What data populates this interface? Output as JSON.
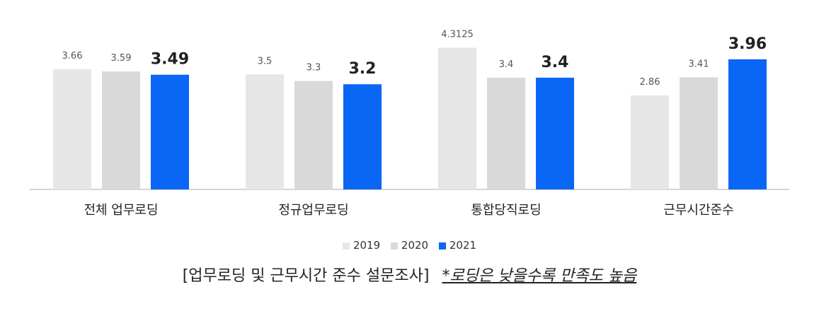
{
  "chart_data": {
    "type": "bar",
    "categories": [
      "전체 업무로딩",
      "정규업무로딩",
      "통합당직로딩",
      "근무시간준수"
    ],
    "series": [
      {
        "name": "2019",
        "values": [
          3.66,
          3.5,
          4.3125,
          2.86
        ],
        "labels": [
          "3.66",
          "3.5",
          "4.3125",
          "2.86"
        ],
        "color": "#e6e6e6"
      },
      {
        "name": "2020",
        "values": [
          3.59,
          3.3,
          3.4,
          3.41
        ],
        "labels": [
          "3.59",
          "3.3",
          "3.4",
          "3.41"
        ],
        "color": "#d9d9d9"
      },
      {
        "name": "2021",
        "values": [
          3.49,
          3.2,
          3.4,
          3.96
        ],
        "labels": [
          "3.49",
          "3.2",
          "3.4",
          "3.96"
        ],
        "color": "#0a66f5"
      }
    ],
    "ylim": [
      0,
      4.5
    ],
    "grid": false,
    "legend_position": "bottom",
    "highlight_series": "2021"
  },
  "caption": {
    "main": "[업무로딩 및 근무시간 준수 설문조사]",
    "note": "*로딩은 낮을수록 만족도 높음"
  }
}
